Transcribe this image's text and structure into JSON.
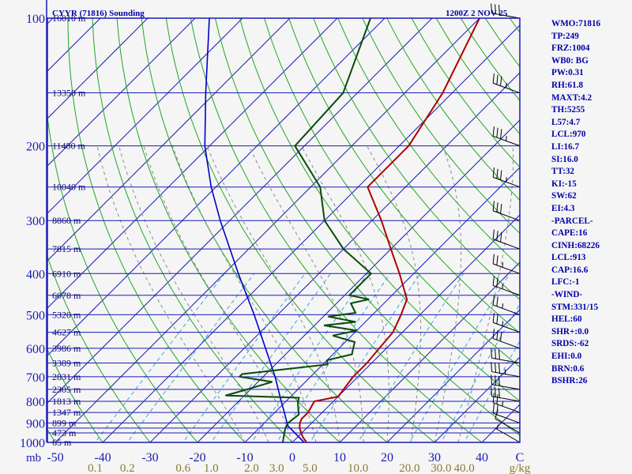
{
  "header": {
    "station": "CYYR (71816) Sounding",
    "time": "1200Z  2 NOV 25"
  },
  "colors": {
    "frame": "#1b1bb8",
    "isobar": "#1b1bb8",
    "isotherm": "#1b1bb8",
    "dry_adiabat": "#21a621",
    "moist_adiabat": "#8a8a8a",
    "mixing_ratio": "#3aa0e0",
    "temperature": "#b00000",
    "dewpoint": "#0b4a0b",
    "parcel": "#0000c8",
    "wind_barb": "#000000",
    "text": "#0000aa",
    "mixing_ratio_labels": "#8a7a2a"
  },
  "indices": [
    "WMO:71816",
    "TP:249",
    "FRZ:1004",
    "WB0: BG",
    "PW:0.31",
    "RH:61.8",
    "MAXT:4.2",
    "TH:5255",
    "L57:4.7",
    "LCL:970",
    "LI:16.7",
    "SI:16.0",
    "TT:32",
    "KI:-15",
    "SW:62",
    "EI:4.3",
    "-PARCEL-",
    "CAPE:16",
    "CINH:68226",
    "LCL:913",
    "CAP:16.6",
    "LFC:-1",
    "-WIND-",
    "STM:331/15",
    "HEL:60",
    "SHR+:0.0",
    "SRDS:-62",
    "EHI:0.0",
    "BRN:0.6",
    "BSHR:26"
  ],
  "chart_data": {
    "type": "skew-t log-p",
    "title": "CYYR (71816) Sounding",
    "pressure_unit": "mb",
    "mixing_ratio_unit": "g/kg",
    "pressure_range_mb": [
      100,
      1000
    ],
    "temperature_range_c": [
      -50,
      50
    ],
    "pressure_ticks": [
      "100",
      "200",
      "300",
      "400",
      "500",
      "600",
      "700",
      "800",
      "900",
      "1000"
    ],
    "pressure_unit_label": "mb",
    "isobars_mb": [
      100,
      150,
      200,
      250,
      300,
      350,
      400,
      450,
      500,
      550,
      600,
      650,
      700,
      750,
      800,
      850,
      900,
      925,
      950,
      1000
    ],
    "height_labels": [
      {
        "p": 100,
        "text": "16010 m"
      },
      {
        "p": 150,
        "text": "13350 m"
      },
      {
        "p": 200,
        "text": "11480 m"
      },
      {
        "p": 250,
        "text": "10040 m"
      },
      {
        "p": 300,
        "text": "8860 m"
      },
      {
        "p": 350,
        "text": "7815 m"
      },
      {
        "p": 400,
        "text": "6910 m"
      },
      {
        "p": 450,
        "text": "6078 m"
      },
      {
        "p": 500,
        "text": "5320 m"
      },
      {
        "p": 550,
        "text": "4627 m"
      },
      {
        "p": 600,
        "text": "3986 m"
      },
      {
        "p": 650,
        "text": "3389 m"
      },
      {
        "p": 700,
        "text": "2831 m"
      },
      {
        "p": 750,
        "text": "2305 m"
      },
      {
        "p": 800,
        "text": "1813 m"
      },
      {
        "p": 850,
        "text": "1347 m"
      },
      {
        "p": 900,
        "text": "899 m"
      },
      {
        "p": 950,
        "text": "473 m"
      },
      {
        "p": 1000,
        "text": "65 m"
      }
    ],
    "temperature_ticks": [
      "-50",
      "-40",
      "-30",
      "-20",
      "-10",
      "0",
      "10",
      "20",
      "30",
      "40",
      "C"
    ],
    "temperature_tick_values": [
      -50,
      -40,
      -30,
      -20,
      -10,
      0,
      10,
      20,
      30,
      40
    ],
    "mixing_ratio_ticks": [
      "0.1",
      "0.2",
      "0.6",
      "1.0",
      "2.0",
      "3.0",
      "5.0",
      "10.0",
      "20.0",
      "30.0",
      "40.0",
      "g/kg"
    ],
    "mixing_ratio_values": [
      0.1,
      0.2,
      0.6,
      1.0,
      2.0,
      3.0,
      5.0,
      10.0,
      20.0,
      30.0,
      40.0
    ],
    "dry_adiabats_theta_c": [
      -70,
      -60,
      -50,
      -40,
      -30,
      -20,
      -10,
      0,
      10,
      20,
      30,
      40,
      50,
      60,
      70,
      80,
      90,
      100,
      110,
      120,
      130,
      140,
      150,
      160,
      170,
      180
    ],
    "moist_adiabats_c": [
      -10,
      -5,
      0,
      5,
      10,
      15,
      20,
      25,
      30,
      35
    ],
    "temperature_profile": [
      {
        "p": 1000,
        "t": 3.0
      },
      {
        "p": 970,
        "t": 1.0
      },
      {
        "p": 925,
        "t": -1.5
      },
      {
        "p": 900,
        "t": -2.5
      },
      {
        "p": 880,
        "t": -3.0
      },
      {
        "p": 850,
        "t": -3.0
      },
      {
        "p": 800,
        "t": -4.0
      },
      {
        "p": 780,
        "t": 0.0
      },
      {
        "p": 700,
        "t": -1.0
      },
      {
        "p": 650,
        "t": -1.0
      },
      {
        "p": 600,
        "t": -1.5
      },
      {
        "p": 550,
        "t": -2.0
      },
      {
        "p": 500,
        "t": -4.0
      },
      {
        "p": 460,
        "t": -6.0
      },
      {
        "p": 400,
        "t": -13.0
      },
      {
        "p": 350,
        "t": -20.0
      },
      {
        "p": 300,
        "t": -28.0
      },
      {
        "p": 250,
        "t": -38.0
      },
      {
        "p": 200,
        "t": -38.0
      },
      {
        "p": 150,
        "t": -42.0
      },
      {
        "p": 100,
        "t": -50.0
      }
    ],
    "dewpoint_profile": [
      {
        "p": 1000,
        "t": -2.0
      },
      {
        "p": 970,
        "t": -3.0
      },
      {
        "p": 925,
        "t": -4.5
      },
      {
        "p": 900,
        "t": -5.0
      },
      {
        "p": 860,
        "t": -4.5
      },
      {
        "p": 830,
        "t": -6.0
      },
      {
        "p": 800,
        "t": -7.5
      },
      {
        "p": 785,
        "t": -8.0
      },
      {
        "p": 775,
        "t": -24.0
      },
      {
        "p": 760,
        "t": -22.0
      },
      {
        "p": 720,
        "t": -17.0
      },
      {
        "p": 700,
        "t": -25.0
      },
      {
        "p": 690,
        "t": -25.0
      },
      {
        "p": 670,
        "t": -16.0
      },
      {
        "p": 655,
        "t": -9.0
      },
      {
        "p": 640,
        "t": -10.0
      },
      {
        "p": 620,
        "t": -6.0
      },
      {
        "p": 600,
        "t": -7.0
      },
      {
        "p": 580,
        "t": -8.0
      },
      {
        "p": 560,
        "t": -14.0
      },
      {
        "p": 545,
        "t": -10.0
      },
      {
        "p": 530,
        "t": -18.0
      },
      {
        "p": 520,
        "t": -12.0
      },
      {
        "p": 505,
        "t": -19.0
      },
      {
        "p": 495,
        "t": -14.0
      },
      {
        "p": 470,
        "t": -17.0
      },
      {
        "p": 460,
        "t": -14.0
      },
      {
        "p": 450,
        "t": -19.0
      },
      {
        "p": 400,
        "t": -19.0
      },
      {
        "p": 350,
        "t": -30.0
      },
      {
        "p": 300,
        "t": -40.0
      },
      {
        "p": 250,
        "t": -48.0
      },
      {
        "p": 200,
        "t": -62.0
      },
      {
        "p": 150,
        "t": -63.0
      },
      {
        "p": 100,
        "t": -73.0
      }
    ],
    "parcel_profile": [
      {
        "p": 1000,
        "t": 2.5
      },
      {
        "p": 913,
        "t": -4.5
      },
      {
        "p": 850,
        "t": -8.0
      },
      {
        "p": 800,
        "t": -11.0
      },
      {
        "p": 700,
        "t": -17.5
      },
      {
        "p": 600,
        "t": -25.5
      },
      {
        "p": 500,
        "t": -35.0
      },
      {
        "p": 400,
        "t": -47.0
      },
      {
        "p": 300,
        "t": -62.0
      },
      {
        "p": 250,
        "t": -71.0
      },
      {
        "p": 200,
        "t": -81.0
      },
      {
        "p": 150,
        "t": -92.0
      },
      {
        "p": 100,
        "t": -107.0
      }
    ],
    "wind_barbs": [
      {
        "p": 1000,
        "dir": 300,
        "kt": 5
      },
      {
        "p": 950,
        "dir": 300,
        "kt": 10
      },
      {
        "p": 900,
        "dir": 290,
        "kt": 20
      },
      {
        "p": 850,
        "dir": 290,
        "kt": 25
      },
      {
        "p": 800,
        "dir": 280,
        "kt": 30
      },
      {
        "p": 750,
        "dir": 280,
        "kt": 30
      },
      {
        "p": 700,
        "dir": 280,
        "kt": 35
      },
      {
        "p": 650,
        "dir": 280,
        "kt": 30
      },
      {
        "p": 600,
        "dir": 290,
        "kt": 30
      },
      {
        "p": 550,
        "dir": 290,
        "kt": 25
      },
      {
        "p": 500,
        "dir": 290,
        "kt": 25
      },
      {
        "p": 450,
        "dir": 290,
        "kt": 25
      },
      {
        "p": 400,
        "dir": 290,
        "kt": 25
      },
      {
        "p": 350,
        "dir": 290,
        "kt": 30
      },
      {
        "p": 300,
        "dir": 290,
        "kt": 30
      },
      {
        "p": 250,
        "dir": 290,
        "kt": 35
      },
      {
        "p": 200,
        "dir": 290,
        "kt": 35
      },
      {
        "p": 150,
        "dir": 290,
        "kt": 35
      },
      {
        "p": 100,
        "dir": 280,
        "kt": 30
      }
    ]
  }
}
